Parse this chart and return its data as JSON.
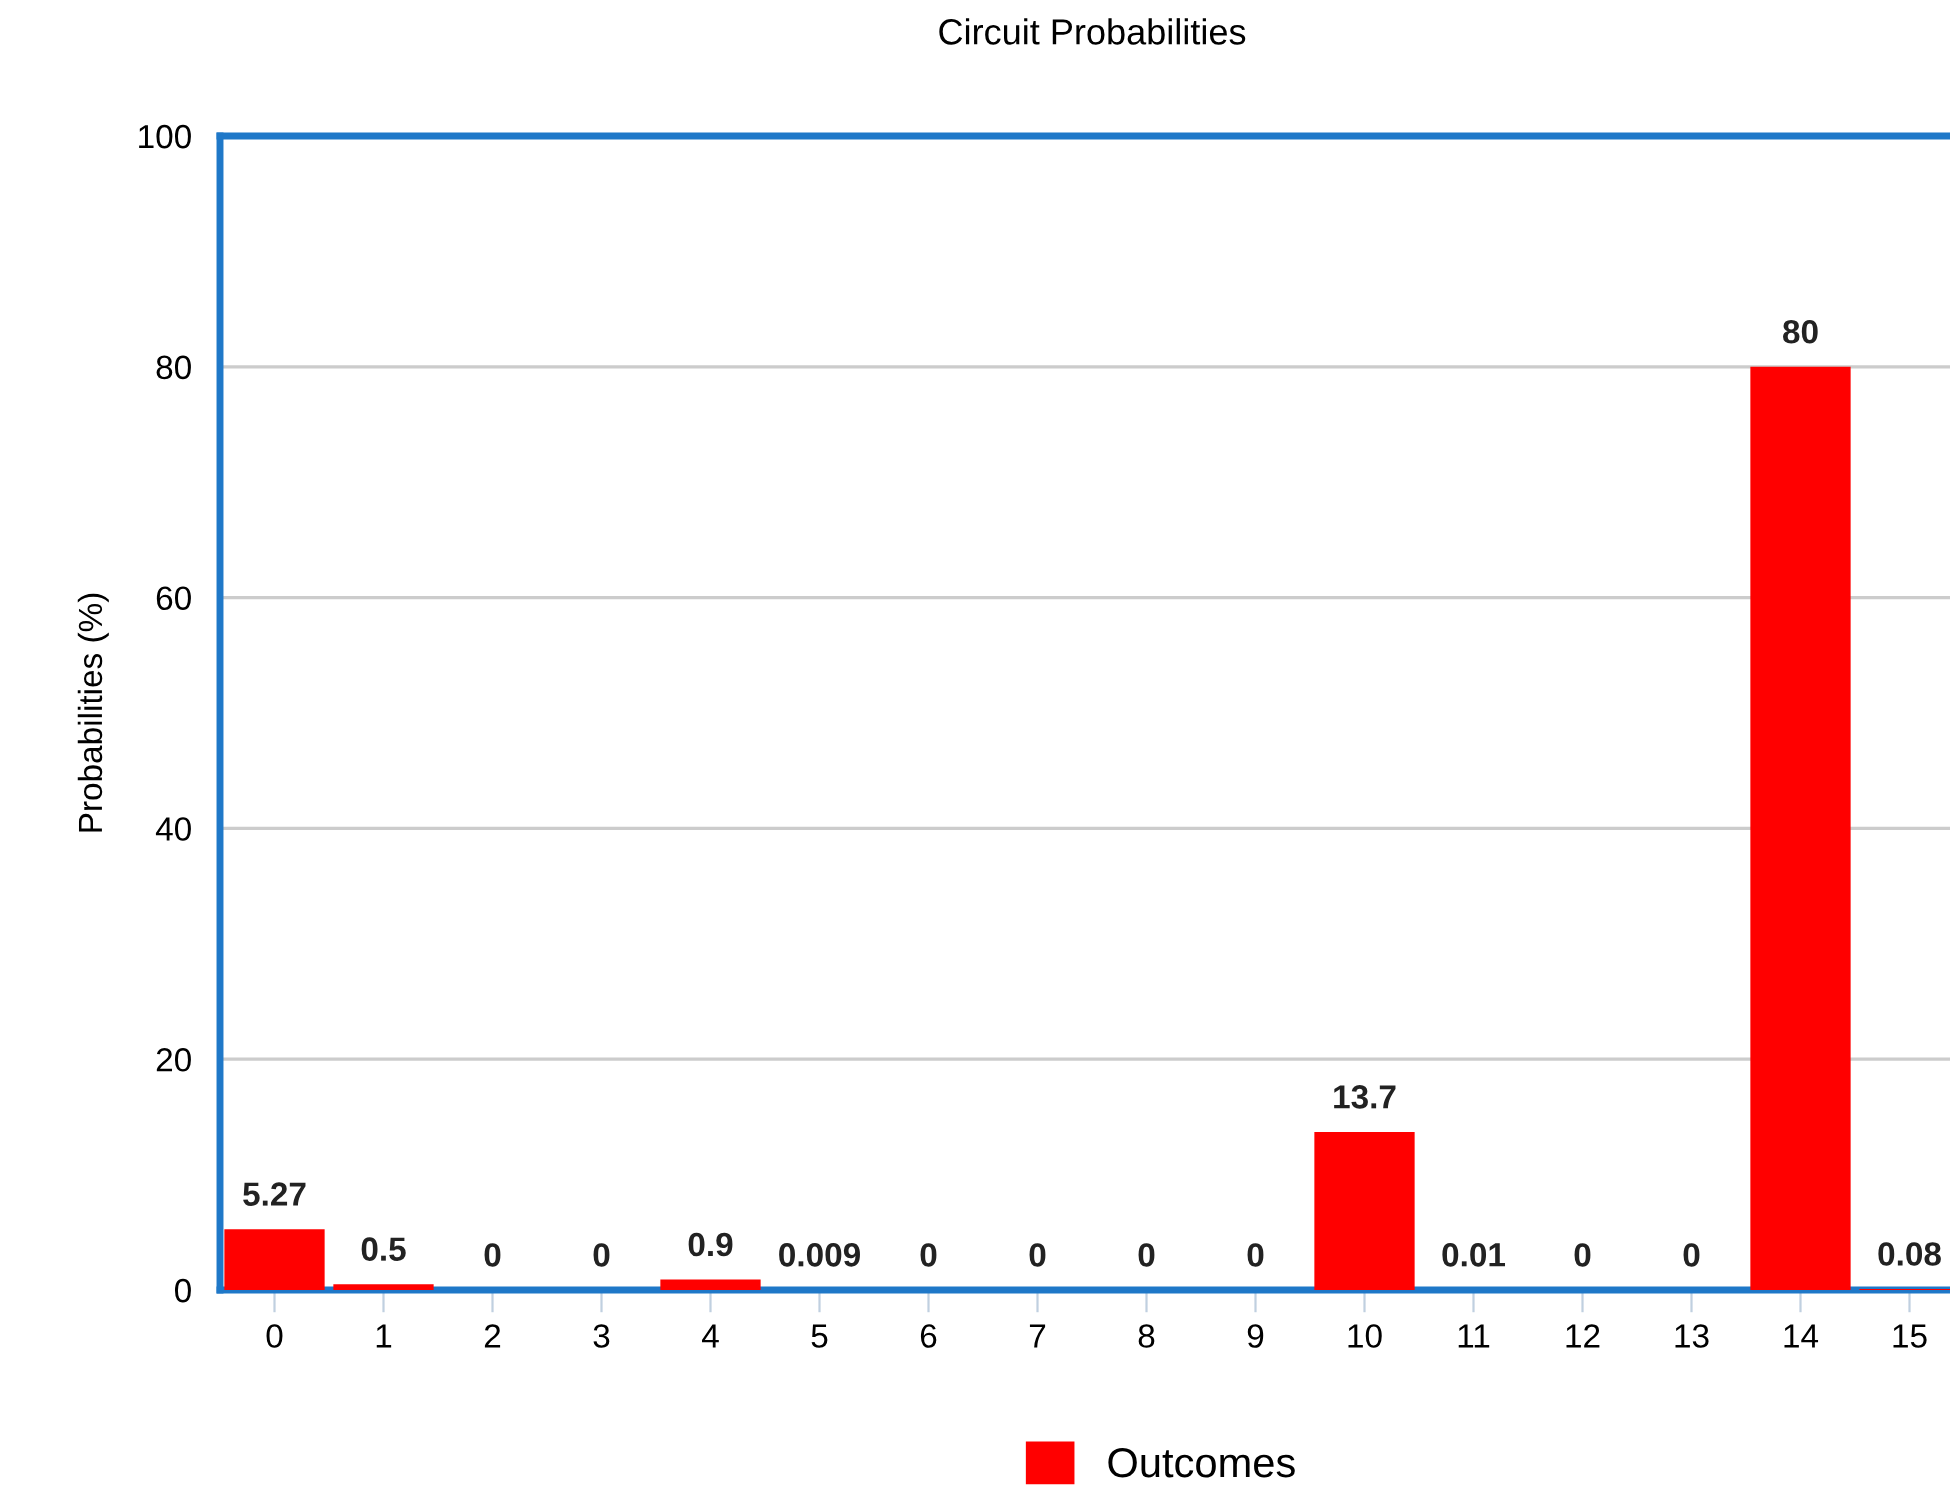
{
  "chart_data": {
    "type": "bar",
    "title": "Circuit Probabilities",
    "ylabel": "Probabilities (%)",
    "categories": [
      "0",
      "1",
      "2",
      "3",
      "4",
      "5",
      "6",
      "7",
      "8",
      "9",
      "10",
      "11",
      "12",
      "13",
      "14",
      "15"
    ],
    "series": [
      {
        "name": "Outcomes",
        "color": "#ff0000",
        "values": [
          5.27,
          0.5,
          0,
          0,
          0.9,
          0.009,
          0,
          0,
          0,
          0,
          13.7,
          0.01,
          0,
          0,
          80,
          0.08
        ]
      }
    ],
    "ylim": [
      0,
      100
    ],
    "yticks": [
      0,
      20,
      40,
      60,
      80,
      100
    ],
    "grid": "y",
    "legend": "bottom",
    "data_labels": true
  }
}
